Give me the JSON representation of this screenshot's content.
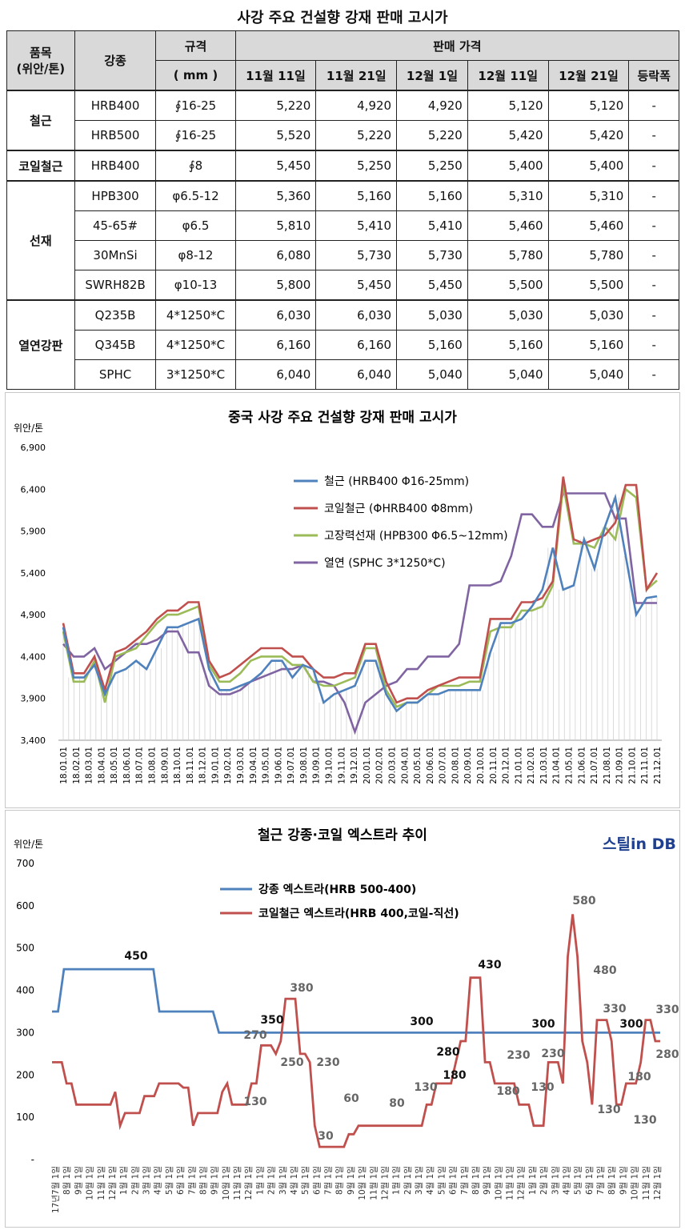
{
  "table_title": "사강 주요 건설향 강재 판매 고시가",
  "table": {
    "headers": {
      "item": "품목\n(위안/톤)",
      "grade": "강종",
      "spec": "규격",
      "spec_unit": "( mm )",
      "price": "판매 가격",
      "dates": [
        "11월 11일",
        "11월 21일",
        "12월 1일",
        "12월 11일",
        "12월 21일"
      ],
      "change": "등락폭"
    },
    "groups": [
      {
        "name": "철근",
        "rows": [
          {
            "grade": "HRB400",
            "spec": "∮16-25",
            "prices": [
              "5,220",
              "4,920",
              "4,920",
              "5,120",
              "5,120"
            ],
            "change": "-"
          },
          {
            "grade": "HRB500",
            "spec": "∮16-25",
            "prices": [
              "5,520",
              "5,220",
              "5,220",
              "5,420",
              "5,420"
            ],
            "change": "-"
          }
        ]
      },
      {
        "name": "코일철근",
        "rows": [
          {
            "grade": "HRB400",
            "spec": "∮8",
            "prices": [
              "5,450",
              "5,250",
              "5,250",
              "5,400",
              "5,400"
            ],
            "change": "-"
          }
        ]
      },
      {
        "name": "선재",
        "rows": [
          {
            "grade": "HPB300",
            "spec": "φ6.5-12",
            "prices": [
              "5,360",
              "5,160",
              "5,160",
              "5,310",
              "5,310"
            ],
            "change": "-"
          },
          {
            "grade": "45-65#",
            "spec": "φ6.5",
            "prices": [
              "5,810",
              "5,410",
              "5,410",
              "5,460",
              "5,460"
            ],
            "change": "-"
          },
          {
            "grade": "30MnSi",
            "spec": "φ8-12",
            "prices": [
              "6,080",
              "5,730",
              "5,730",
              "5,780",
              "5,780"
            ],
            "change": "-"
          },
          {
            "grade": "SWRH82B",
            "spec": "φ10-13",
            "prices": [
              "5,800",
              "5,450",
              "5,450",
              "5,500",
              "5,500"
            ],
            "change": "-"
          }
        ]
      },
      {
        "name": "열연강판",
        "rows": [
          {
            "grade": "Q235B",
            "spec": "4*1250*C",
            "prices": [
              "6,030",
              "6,030",
              "5,030",
              "5,030",
              "5,030"
            ],
            "change": "-"
          },
          {
            "grade": "Q345B",
            "spec": "4*1250*C",
            "prices": [
              "6,160",
              "6,160",
              "5,160",
              "5,160",
              "5,160"
            ],
            "change": "-"
          },
          {
            "grade": "SPHC",
            "spec": "3*1250*C",
            "prices": [
              "6,040",
              "6,040",
              "5,040",
              "5,040",
              "5,040"
            ],
            "change": "-"
          }
        ]
      }
    ]
  },
  "chart_data": [
    {
      "type": "line",
      "title": "중국 사강 주요 건설향 강재 판매 고시가",
      "ylabel": "위안/톤",
      "ylim": [
        3400,
        6900
      ],
      "yticks": [
        "3,400",
        "3,900",
        "4,400",
        "4,900",
        "5,400",
        "5,900",
        "6,400",
        "6,900"
      ],
      "xtick_labels": [
        "18.01.01",
        "18.02.01",
        "18.03.01",
        "18.04.01",
        "18.05.01",
        "18.06.01",
        "18.07.01",
        "18.08.01",
        "18.09.01",
        "18.10.01",
        "18.11.01",
        "18.12.01",
        "19.01.01",
        "19.02.01",
        "19.03.01",
        "19.04.01",
        "19.05.01",
        "19.06.01",
        "19.07.01",
        "19.08.01",
        "19.09.01",
        "19.10.01",
        "19.11.01",
        "19.12.01",
        "20.01.01",
        "20.02.01",
        "20.03.01",
        "20.04.01",
        "20.05.01",
        "20.06.01",
        "20.07.01",
        "20.08.01",
        "20.09.01",
        "20.10.01",
        "20.11.01",
        "20.12.01",
        "21.01.01",
        "21.02.01",
        "21.03.01",
        "21.04.01",
        "21.05.01",
        "21.06.01",
        "21.07.01",
        "21.08.01",
        "21.09.01",
        "21.10.01",
        "21.11.01",
        "21.12.01"
      ],
      "legend_position": "top-right",
      "series": [
        {
          "name": "철근 (HRB400 Φ16-25mm)",
          "color": "#4f81bd",
          "values": [
            4750,
            4150,
            4150,
            4300,
            3950,
            4200,
            4250,
            4350,
            4250,
            4500,
            4750,
            4750,
            4800,
            4850,
            4250,
            4000,
            4000,
            4050,
            4100,
            4200,
            4350,
            4350,
            4150,
            4300,
            4250,
            3850,
            3950,
            4000,
            4050,
            4350,
            4350,
            3950,
            3750,
            3850,
            3850,
            3950,
            3950,
            4000,
            4000,
            4000,
            4000,
            4450,
            4800,
            4800,
            4850,
            5000,
            5200,
            5700,
            5200,
            5250,
            5800,
            5450,
            5950,
            6300,
            5600,
            4900,
            5100,
            5120
          ]
        },
        {
          "name": "코일철근 (ΦHRB400 Φ8mm)",
          "color": "#c0504d",
          "values": [
            4800,
            4200,
            4200,
            4400,
            4000,
            4450,
            4500,
            4600,
            4700,
            4850,
            4950,
            4950,
            5050,
            5050,
            4350,
            4150,
            4200,
            4300,
            4400,
            4500,
            4500,
            4500,
            4400,
            4400,
            4250,
            4150,
            4150,
            4200,
            4200,
            4550,
            4550,
            4100,
            3850,
            3900,
            3900,
            4000,
            4050,
            4100,
            4150,
            4150,
            4150,
            4850,
            4850,
            4850,
            5050,
            5050,
            5100,
            5300,
            6550,
            5800,
            5750,
            5800,
            5850,
            6000,
            6450,
            6450,
            5200,
            5400
          ]
        },
        {
          "name": "고장력선재 (HPB300 Φ6.5~12mm)",
          "color": "#9bbb59",
          "values": [
            4700,
            4100,
            4100,
            4350,
            3850,
            4400,
            4450,
            4500,
            4650,
            4800,
            4900,
            4900,
            4950,
            5000,
            4300,
            4100,
            4100,
            4200,
            4350,
            4400,
            4400,
            4400,
            4300,
            4300,
            4100,
            4050,
            4050,
            4100,
            4150,
            4500,
            4500,
            4000,
            3800,
            3850,
            3850,
            3950,
            4050,
            4050,
            4050,
            4100,
            4100,
            4700,
            4750,
            4750,
            4950,
            4950,
            5000,
            5250,
            6450,
            5750,
            5750,
            5700,
            5950,
            5800,
            6400,
            6300,
            5200,
            5310
          ]
        },
        {
          "name": "열연 (SPHC 3*1250*C)",
          "color": "#8064a2",
          "values": [
            4550,
            4400,
            4400,
            4500,
            4250,
            4350,
            4450,
            4550,
            4550,
            4600,
            4700,
            4700,
            4450,
            4450,
            4050,
            3950,
            3950,
            4000,
            4100,
            4150,
            4200,
            4250,
            4250,
            4300,
            4100,
            4100,
            4050,
            3850,
            3500,
            3850,
            3950,
            4050,
            4100,
            4250,
            4250,
            4400,
            4400,
            4400,
            4550,
            5250,
            5250,
            5250,
            5300,
            5600,
            6100,
            6100,
            5950,
            5950,
            6350,
            6350,
            6350,
            6350,
            6350,
            6050,
            6050,
            5040,
            5040,
            5040
          ]
        }
      ]
    },
    {
      "type": "line",
      "title": "철근 강종·코일 엑스트라 추이",
      "ylabel": "위안/톤",
      "ylim": [
        0,
        700
      ],
      "yticks": [
        "-",
        "100",
        "200",
        "300",
        "400",
        "500",
        "600",
        "700"
      ],
      "xtick_labels": [
        "17년7월 1일",
        "8월 1일",
        "9월 1일",
        "10월 1일",
        "11월 1일",
        "12월 1일",
        "1월 1일",
        "2월 1일",
        "3월 1일",
        "4월 1일",
        "5월 1일",
        "6월 1일",
        "7월 1일",
        "8월 1일",
        "9월 1일",
        "10월 1일",
        "11월 1일",
        "12월 1일",
        "1월 1일",
        "2월 1일",
        "3월 1일",
        "4월 1일",
        "5월 1일",
        "6월 1일",
        "7월 1일",
        "8월 1일",
        "9월 1일",
        "10월 1일",
        "11월 1일",
        "12월 1일",
        "1월 1일",
        "2월 1일",
        "3월 1일",
        "4월 1일",
        "5월 1일",
        "6월 1일",
        "7월 1일",
        "8월 1일",
        "9월 1일",
        "10월 1일",
        "11월 1일",
        "12월 1일",
        "1월 1일",
        "2월 1일",
        "3월 1일",
        "4월 1일",
        "5월 1일",
        "6월 1일",
        "7월 1일",
        "8월 1일",
        "9월 1일",
        "10월 1일",
        "11월 1일",
        "12월 1일"
      ],
      "legend_position": "top-left",
      "logo": "스틸in DB",
      "series": [
        {
          "name": "강종 엑스트라(HRB 500-400)",
          "color": "#4f81bd",
          "values": [
            350,
            350,
            450,
            450,
            450,
            450,
            450,
            450,
            450,
            450,
            450,
            450,
            450,
            450,
            450,
            450,
            450,
            450,
            350,
            350,
            350,
            350,
            350,
            350,
            350,
            350,
            350,
            350,
            300,
            300,
            300,
            300,
            300,
            300,
            300,
            300,
            300,
            300,
            300,
            300,
            300,
            300,
            300,
            300,
            300,
            300,
            300,
            300,
            300,
            300,
            300,
            300,
            300,
            300,
            300,
            300,
            300,
            300,
            300,
            300,
            300,
            300,
            300,
            300,
            300,
            300,
            300,
            300,
            300,
            300,
            300,
            300,
            300,
            300,
            300,
            300,
            300,
            300,
            300,
            300,
            300,
            300,
            300,
            300,
            300,
            300,
            300,
            300,
            300,
            300,
            300,
            300,
            300,
            300,
            300,
            300,
            300,
            300,
            300,
            300,
            300,
            300,
            300
          ]
        },
        {
          "name": "코일철근 엑스트라(HRB 400,코일-직선)",
          "color": "#c0504d",
          "values": [
            230,
            230,
            230,
            180,
            180,
            130,
            130,
            130,
            130,
            130,
            130,
            130,
            130,
            160,
            80,
            110,
            110,
            110,
            110,
            150,
            150,
            150,
            180,
            180,
            180,
            180,
            180,
            170,
            170,
            80,
            110,
            110,
            110,
            110,
            110,
            160,
            180,
            130,
            130,
            130,
            130,
            180,
            180,
            270,
            270,
            270,
            250,
            280,
            380,
            380,
            380,
            250,
            250,
            230,
            80,
            30,
            30,
            30,
            30,
            30,
            30,
            60,
            60,
            80,
            80,
            80,
            80,
            80,
            80,
            80,
            80,
            80,
            80,
            80,
            80,
            80,
            80,
            130,
            130,
            180,
            180,
            180,
            180,
            230,
            280,
            280,
            430,
            430,
            430,
            230,
            230,
            180,
            180,
            180,
            180,
            180,
            130,
            130,
            130,
            80,
            80,
            80,
            230,
            230,
            230,
            180,
            480,
            580,
            480,
            280,
            230,
            130,
            330,
            330,
            330,
            280,
            130,
            130,
            180,
            180,
            180,
            230,
            330,
            330,
            280,
            280
          ]
        }
      ],
      "data_labels": [
        {
          "text": "450",
          "series": 0
        },
        {
          "text": "350",
          "series": 0
        },
        {
          "text": "300",
          "series": 0
        },
        {
          "text": "300",
          "series": 0
        },
        {
          "text": "300",
          "series": 0
        },
        {
          "text": "270",
          "series": 1
        },
        {
          "text": "130",
          "series": 1
        },
        {
          "text": "380",
          "series": 1
        },
        {
          "text": "250",
          "series": 1
        },
        {
          "text": "230",
          "series": 1
        },
        {
          "text": "30",
          "series": 1
        },
        {
          "text": "60",
          "series": 1
        },
        {
          "text": "80",
          "series": 1
        },
        {
          "text": "130",
          "series": 1
        },
        {
          "text": "280",
          "series": 1
        },
        {
          "text": "180",
          "series": 1
        },
        {
          "text": "430",
          "series": 1
        },
        {
          "text": "230",
          "series": 1
        },
        {
          "text": "180",
          "series": 1
        },
        {
          "text": "130",
          "series": 1
        },
        {
          "text": "230",
          "series": 1
        },
        {
          "text": "580",
          "series": 1
        },
        {
          "text": "480",
          "series": 1
        },
        {
          "text": "330",
          "series": 1
        },
        {
          "text": "130",
          "series": 1
        },
        {
          "text": "180",
          "series": 1
        },
        {
          "text": "130",
          "series": 1
        },
        {
          "text": "330",
          "series": 1
        },
        {
          "text": "280",
          "series": 1
        }
      ]
    }
  ]
}
